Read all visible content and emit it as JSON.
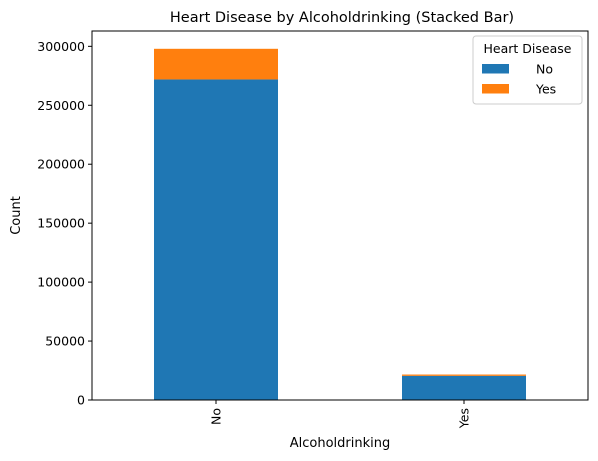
{
  "chart_data": {
    "type": "bar",
    "stacked": true,
    "title": "Heart Disease by Alcoholdrinking (Stacked Bar)",
    "xlabel": "Alcoholdrinking",
    "ylabel": "Count",
    "categories": [
      "No",
      "Yes"
    ],
    "series": [
      {
        "name": "No",
        "color": "#1f77b4",
        "values": [
          271900,
          20500
        ]
      },
      {
        "name": "Yes",
        "color": "#ff7f0e",
        "values": [
          26000,
          1100
        ]
      }
    ],
    "ylim": [
      0,
      313000
    ],
    "yticks": [
      0,
      50000,
      100000,
      150000,
      200000,
      250000,
      300000
    ],
    "ytick_labels": [
      "0",
      "50000",
      "100000",
      "150000",
      "200000",
      "250000",
      "300000"
    ],
    "legend": {
      "title": "Heart Disease",
      "position": "top-right"
    },
    "grid": false
  }
}
